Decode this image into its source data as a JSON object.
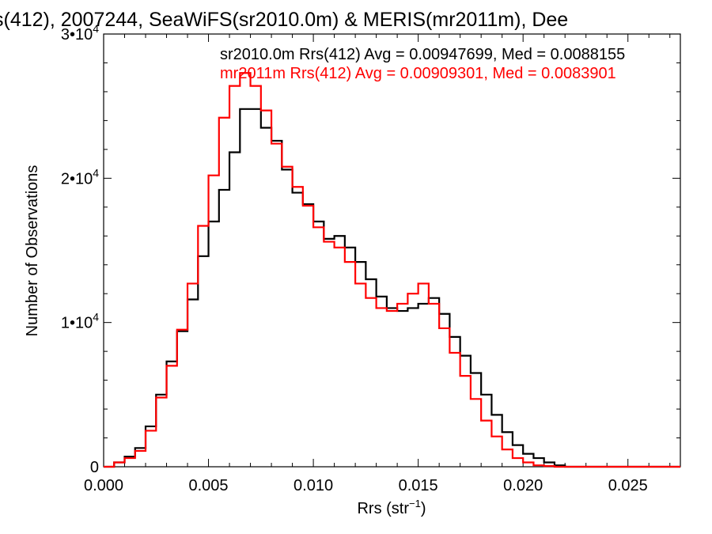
{
  "chart_data": {
    "type": "line",
    "title": "s(412), 2007244, SeaWiFS(sr2010.0m) & MERIS(mr2011m), Dee",
    "xlabel": "Rrs (str",
    "xlabel_sup": "−1",
    "xlabel_end": ")",
    "ylabel": "Number of Observations",
    "xlim": [
      0.0,
      0.0275
    ],
    "ylim": [
      0,
      30000
    ],
    "grid": false,
    "legend_position": "top-right",
    "x_ticks": [
      {
        "value": 0.0,
        "label": "0.000"
      },
      {
        "value": 0.005,
        "label": "0.005"
      },
      {
        "value": 0.01,
        "label": "0.010"
      },
      {
        "value": 0.015,
        "label": "0.015"
      },
      {
        "value": 0.02,
        "label": "0.020"
      },
      {
        "value": 0.025,
        "label": "0.025"
      }
    ],
    "y_ticks": [
      {
        "value": 0,
        "base": "0",
        "exp": ""
      },
      {
        "value": 10000,
        "base": "1•10",
        "exp": "4"
      },
      {
        "value": 20000,
        "base": "2•10",
        "exp": "4"
      },
      {
        "value": 30000,
        "base": "3•10",
        "exp": "4"
      }
    ],
    "series": [
      {
        "name": "sr2010.0m Rrs(412) Avg = 0.00947699, Med = 0.0088155",
        "color": "#000000",
        "x": [
          0.0,
          0.0005,
          0.001,
          0.0015,
          0.002,
          0.0025,
          0.003,
          0.0035,
          0.004,
          0.0045,
          0.005,
          0.0055,
          0.006,
          0.0065,
          0.007,
          0.0075,
          0.008,
          0.0085,
          0.009,
          0.0095,
          0.01,
          0.0105,
          0.011,
          0.0115,
          0.012,
          0.0125,
          0.013,
          0.0135,
          0.014,
          0.0145,
          0.015,
          0.0155,
          0.016,
          0.0165,
          0.017,
          0.0175,
          0.018,
          0.0185,
          0.019,
          0.0195,
          0.02,
          0.0205,
          0.021,
          0.0215,
          0.022,
          0.0225,
          0.023,
          0.024,
          0.025,
          0.026,
          0.0275
        ],
        "y": [
          0,
          300,
          700,
          1300,
          2800,
          5000,
          7300,
          9400,
          11600,
          14600,
          17000,
          19200,
          21800,
          24800,
          24800,
          23500,
          22600,
          20600,
          19000,
          18200,
          17000,
          15800,
          16000,
          15200,
          14200,
          13000,
          11800,
          11000,
          10800,
          11000,
          11300,
          11700,
          10600,
          9000,
          7700,
          6500,
          5000,
          3600,
          2400,
          1500,
          900,
          600,
          300,
          100,
          0,
          0,
          0,
          0,
          0,
          0,
          0
        ]
      },
      {
        "name": "mr2011m Rrs(412) Avg = 0.00909301, Med = 0.0083901",
        "color": "#ff0000",
        "x": [
          0.0,
          0.0005,
          0.001,
          0.0015,
          0.002,
          0.0025,
          0.003,
          0.0035,
          0.004,
          0.0045,
          0.005,
          0.0055,
          0.006,
          0.0065,
          0.007,
          0.0075,
          0.008,
          0.0085,
          0.009,
          0.0095,
          0.01,
          0.0105,
          0.011,
          0.0115,
          0.012,
          0.0125,
          0.013,
          0.0135,
          0.014,
          0.0145,
          0.015,
          0.0155,
          0.016,
          0.0165,
          0.017,
          0.0175,
          0.018,
          0.0185,
          0.019,
          0.0195,
          0.02,
          0.0205,
          0.021,
          0.0215,
          0.022,
          0.0225,
          0.023,
          0.024,
          0.025,
          0.026,
          0.0275
        ],
        "y": [
          0,
          300,
          600,
          1100,
          2500,
          4800,
          7000,
          9500,
          12700,
          16700,
          20200,
          24200,
          26400,
          27300,
          26400,
          24700,
          22400,
          20800,
          19400,
          18100,
          16600,
          15600,
          15200,
          14200,
          12700,
          11700,
          11000,
          10800,
          11300,
          12000,
          12700,
          11300,
          9600,
          7900,
          6300,
          4700,
          3200,
          2100,
          1200,
          600,
          300,
          100,
          50,
          0,
          0,
          0,
          0,
          0,
          0,
          0,
          0
        ]
      }
    ]
  }
}
